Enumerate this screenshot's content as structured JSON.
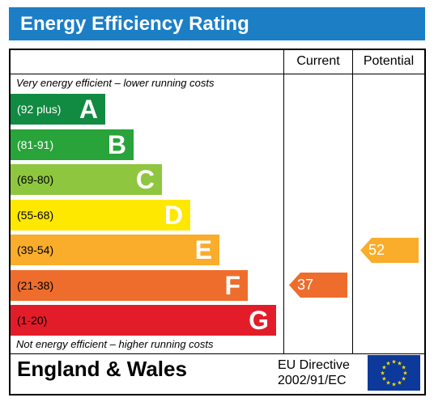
{
  "title": "Energy Efficiency Rating",
  "columns": {
    "current": "Current",
    "potential": "Potential"
  },
  "notes": {
    "top": "Very energy efficient – lower running costs",
    "bottom": "Not energy efficient – higher running costs"
  },
  "bands": [
    {
      "range": "(92 plus)",
      "letter": "A",
      "color": "#118a42",
      "range_color": "#ffffff"
    },
    {
      "range": "(81-91)",
      "letter": "B",
      "color": "#28a43a",
      "range_color": "#ffffff"
    },
    {
      "range": "(69-80)",
      "letter": "C",
      "color": "#8ec63f",
      "range_color": "#000000"
    },
    {
      "range": "(55-68)",
      "letter": "D",
      "color": "#ffe800",
      "range_color": "#000000"
    },
    {
      "range": "(39-54)",
      "letter": "E",
      "color": "#f9ad2b",
      "range_color": "#000000"
    },
    {
      "range": "(21-38)",
      "letter": "F",
      "color": "#ee6d2c",
      "range_color": "#000000"
    },
    {
      "range": "(1-20)",
      "letter": "G",
      "color": "#e21d29",
      "range_color": "#000000"
    }
  ],
  "current": {
    "value": "37",
    "band": "F",
    "color": "#ee6d2c"
  },
  "potential": {
    "value": "52",
    "band": "E",
    "color": "#f9ad2b"
  },
  "footer": {
    "region": "England & Wales",
    "directive_line1": "EU Directive",
    "directive_line2": "2002/91/EC"
  },
  "colors": {
    "header": "#1c7ec5",
    "eu_flag_blue": "#0d3a9a",
    "eu_star": "#ffdd00"
  },
  "icons": {
    "flag": "eu-flag-icon"
  }
}
